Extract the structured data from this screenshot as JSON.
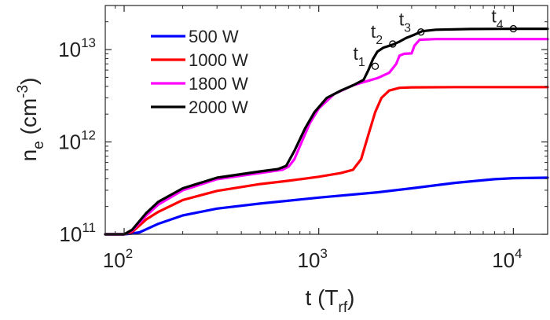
{
  "chart_data": {
    "type": "line",
    "x_scale": "log",
    "y_scale": "log",
    "xlim": [
      80,
      15000
    ],
    "ylim": [
      100000000000.0,
      30000000000000.0
    ],
    "grid": false,
    "legend_placement": "top-left",
    "xlabel": {
      "main": "t (T",
      "sub": "rf",
      "tail": ")"
    },
    "ylabel": {
      "main": "n",
      "sub": "e",
      "mid": " (cm",
      "sup": "-3",
      "tail": ")"
    },
    "x_ticks": [
      {
        "value": 100,
        "base": "10",
        "exp": "2"
      },
      {
        "value": 1000,
        "base": "10",
        "exp": "3"
      },
      {
        "value": 10000,
        "base": "10",
        "exp": "4"
      }
    ],
    "y_ticks": [
      {
        "value": 100000000000.0,
        "base": "10",
        "exp": "11"
      },
      {
        "value": 1000000000000.0,
        "base": "10",
        "exp": "12"
      },
      {
        "value": 10000000000000.0,
        "base": "10",
        "exp": "13"
      }
    ],
    "series": [
      {
        "name": "500 W",
        "color": "#0000ff",
        "points": [
          [
            80,
            100000000000.0
          ],
          [
            100,
            100000000000.0
          ],
          [
            110,
            102000000000.0
          ],
          [
            120,
            105000000000.0
          ],
          [
            150,
            130000000000.0
          ],
          [
            200,
            160000000000.0
          ],
          [
            300,
            190000000000.0
          ],
          [
            500,
            215000000000.0
          ],
          [
            1000,
            250000000000.0
          ],
          [
            2000,
            285000000000.0
          ],
          [
            3000,
            315000000000.0
          ],
          [
            5000,
            360000000000.0
          ],
          [
            8000,
            395000000000.0
          ],
          [
            10000,
            405000000000.0
          ],
          [
            15000,
            410000000000.0
          ]
        ]
      },
      {
        "name": "1000 W",
        "color": "#ff0000",
        "points": [
          [
            80,
            100000000000.0
          ],
          [
            100,
            100000000000.0
          ],
          [
            110,
            106000000000.0
          ],
          [
            130,
            145000000000.0
          ],
          [
            150,
            175000000000.0
          ],
          [
            200,
            235000000000.0
          ],
          [
            300,
            295000000000.0
          ],
          [
            500,
            350000000000.0
          ],
          [
            700,
            380000000000.0
          ],
          [
            1000,
            420000000000.0
          ],
          [
            1300,
            460000000000.0
          ],
          [
            1500,
            500000000000.0
          ],
          [
            1650,
            650000000000.0
          ],
          [
            1800,
            1200000000000.0
          ],
          [
            1950,
            2100000000000.0
          ],
          [
            2100,
            3000000000000.0
          ],
          [
            2300,
            3600000000000.0
          ],
          [
            2600,
            3850000000000.0
          ],
          [
            3000,
            3900000000000.0
          ],
          [
            5000,
            3920000000000.0
          ],
          [
            15000,
            3920000000000.0
          ]
        ]
      },
      {
        "name": "1800 W",
        "color": "#ff00ff",
        "points": [
          [
            80,
            100000000000.0
          ],
          [
            100,
            100000000000.0
          ],
          [
            110,
            110000000000.0
          ],
          [
            130,
            160000000000.0
          ],
          [
            150,
            210000000000.0
          ],
          [
            200,
            300000000000.0
          ],
          [
            300,
            395000000000.0
          ],
          [
            500,
            460000000000.0
          ],
          [
            650,
            500000000000.0
          ],
          [
            700,
            540000000000.0
          ],
          [
            750,
            650000000000.0
          ],
          [
            800,
            900000000000.0
          ],
          [
            900,
            1600000000000.0
          ],
          [
            1000,
            2300000000000.0
          ],
          [
            1200,
            3300000000000.0
          ],
          [
            1500,
            4100000000000.0
          ],
          [
            1800,
            4600000000000.0
          ],
          [
            2000,
            4900000000000.0
          ],
          [
            2300,
            5600000000000.0
          ],
          [
            2500,
            7000000000000.0
          ],
          [
            2600,
            8600000000000.0
          ],
          [
            2750,
            9000000000000.0
          ],
          [
            3000,
            9100000000000.0
          ],
          [
            3100,
            11000000000000.0
          ],
          [
            3300,
            12800000000000.0
          ],
          [
            4000,
            13000000000000.0
          ],
          [
            15000,
            13000000000000.0
          ]
        ]
      },
      {
        "name": "2000 W",
        "color": "#000000",
        "points": [
          [
            80,
            100000000000.0
          ],
          [
            100,
            100000000000.0
          ],
          [
            110,
            112000000000.0
          ],
          [
            130,
            170000000000.0
          ],
          [
            150,
            225000000000.0
          ],
          [
            200,
            315000000000.0
          ],
          [
            300,
            410000000000.0
          ],
          [
            500,
            480000000000.0
          ],
          [
            620,
            510000000000.0
          ],
          [
            680,
            550000000000.0
          ],
          [
            750,
            800000000000.0
          ],
          [
            850,
            1400000000000.0
          ],
          [
            950,
            2100000000000.0
          ],
          [
            1100,
            3000000000000.0
          ],
          [
            1300,
            3600000000000.0
          ],
          [
            1500,
            4100000000000.0
          ],
          [
            1700,
            4700000000000.0
          ],
          [
            1800,
            6000000000000.0
          ],
          [
            1900,
            7900000000000.0
          ],
          [
            2000,
            9500000000000.0
          ],
          [
            2150,
            10500000000000.0
          ],
          [
            2400,
            11300000000000.0
          ],
          [
            2600,
            12200000000000.0
          ],
          [
            2800,
            13300000000000.0
          ],
          [
            3100,
            14500000000000.0
          ],
          [
            3400,
            15800000000000.0
          ],
          [
            4000,
            16400000000000.0
          ],
          [
            6000,
            16700000000000.0
          ],
          [
            10000,
            16800000000000.0
          ],
          [
            15000,
            16800000000000.0
          ]
        ]
      }
    ],
    "markers": [
      {
        "label": "t",
        "sub": "1",
        "x": 1950,
        "y": 6600000000000.0,
        "text_side": "left"
      },
      {
        "label": "t",
        "sub": "2",
        "x": 2400,
        "y": 11500000000000.0,
        "text_side": "left"
      },
      {
        "label": "t",
        "sub": "3",
        "x": 3350,
        "y": 15500000000000.0,
        "text_side": "left"
      },
      {
        "label": "t",
        "sub": "4",
        "x": 10000,
        "y": 16800000000000.0,
        "text_side": "left"
      }
    ]
  }
}
